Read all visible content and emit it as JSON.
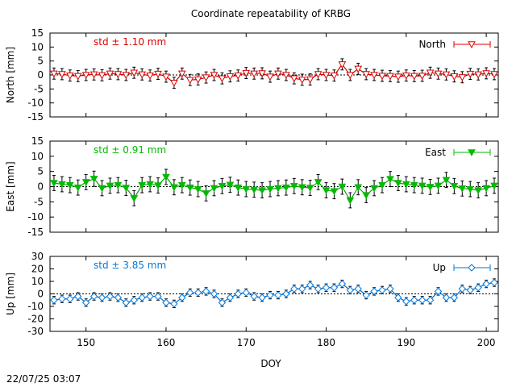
{
  "title": "Coordinate repeatability of KRBG",
  "xlabel": "DOY",
  "timestamp": "22/07/25 03:07",
  "chart_data": [
    {
      "type": "line",
      "ylabel": "North [mm]",
      "ylim": [
        -15,
        15
      ],
      "yticks": [
        "15",
        "10",
        "5",
        "0",
        "-5",
        "-10",
        "-15"
      ],
      "xlim": [
        145.5,
        201.5
      ],
      "xticks": [
        "150",
        "160",
        "170",
        "180",
        "190",
        "200"
      ],
      "std_label": "std ± 1.10 mm",
      "legend": "North",
      "color": "#dd0000",
      "series": [
        {
          "name": "North",
          "x": [
            146,
            147,
            148,
            149,
            150,
            151,
            152,
            153,
            154,
            155,
            156,
            157,
            158,
            159,
            160,
            161,
            162,
            163,
            164,
            165,
            166,
            167,
            168,
            169,
            170,
            171,
            172,
            173,
            174,
            175,
            176,
            177,
            178,
            179,
            180,
            181,
            182,
            183,
            184,
            185,
            186,
            187,
            188,
            189,
            190,
            191,
            192,
            193,
            194,
            195,
            196,
            197,
            198,
            199,
            200,
            201
          ],
          "y": [
            0.5,
            0.3,
            -0.2,
            -0.4,
            0,
            0.2,
            -0.1,
            0.5,
            0.3,
            0,
            0.8,
            0.2,
            -0.2,
            0.4,
            -0.6,
            -2.8,
            0.5,
            -1.8,
            -1.6,
            -0.9,
            0,
            -1.2,
            -0.5,
            -0.2,
            0.7,
            0.5,
            0.6,
            -0.6,
            0.5,
            0,
            -1.2,
            -1.7,
            -1.6,
            0.3,
            0,
            -0.2,
            3.8,
            0,
            2.2,
            0.3,
            0,
            -0.3,
            -0.4,
            -0.6,
            -0.2,
            -0.4,
            -0.3,
            0.8,
            0.5,
            0.2,
            -0.5,
            -0.8,
            0.4,
            0.2,
            0.6,
            0.3
          ]
        }
      ]
    },
    {
      "type": "line",
      "ylabel": "East [mm]",
      "ylim": [
        -15,
        15
      ],
      "yticks": [
        "15",
        "10",
        "5",
        "0",
        "-5",
        "-10",
        "-15"
      ],
      "xlim": [
        145.5,
        201.5
      ],
      "xticks": [
        "150",
        "160",
        "170",
        "180",
        "190",
        "200"
      ],
      "std_label": "std ± 0.91 mm",
      "legend": "East",
      "color": "#00bb00",
      "series": [
        {
          "name": "East",
          "x": [
            146,
            147,
            148,
            149,
            150,
            151,
            152,
            153,
            154,
            155,
            156,
            157,
            158,
            159,
            160,
            161,
            162,
            163,
            164,
            165,
            166,
            167,
            168,
            169,
            170,
            171,
            172,
            173,
            174,
            175,
            176,
            177,
            178,
            179,
            180,
            181,
            182,
            183,
            184,
            185,
            186,
            187,
            188,
            189,
            190,
            191,
            192,
            193,
            194,
            195,
            196,
            197,
            198,
            199,
            200,
            201
          ],
          "y": [
            1.2,
            0.8,
            0.5,
            -0.3,
            1.5,
            2.6,
            -0.5,
            0.3,
            0.5,
            -0.4,
            -3.8,
            0.5,
            0.8,
            0.4,
            3.2,
            -0.2,
            0.5,
            -0.3,
            -0.8,
            -2.2,
            -0.5,
            0.2,
            0.6,
            -0.3,
            -0.8,
            -1,
            -1.2,
            -0.8,
            -0.5,
            -0.3,
            0.2,
            -0.2,
            -0.4,
            1.5,
            -1.2,
            -1.5,
            0,
            -4.5,
            -0.2,
            -2.8,
            -0.5,
            0.5,
            2.5,
            1.2,
            0.8,
            0.5,
            0.3,
            -0.1,
            0.3,
            2.2,
            0.2,
            -0.6,
            -0.8,
            -1.2,
            -0.5,
            0.3
          ]
        }
      ]
    },
    {
      "type": "line",
      "ylabel": "Up [mm]",
      "ylim": [
        -30,
        30
      ],
      "yticks": [
        "30",
        "20",
        "10",
        "0",
        "-10",
        "-20",
        "-30"
      ],
      "xlim": [
        145.5,
        201.5
      ],
      "xticks": [
        "150",
        "160",
        "170",
        "180",
        "190",
        "200"
      ],
      "std_label": "std ± 3.85 mm",
      "legend": "Up",
      "color": "#0077dd",
      "series": [
        {
          "name": "Up",
          "x": [
            146,
            147,
            148,
            149,
            150,
            151,
            152,
            153,
            154,
            155,
            156,
            157,
            158,
            159,
            160,
            161,
            162,
            163,
            164,
            165,
            166,
            167,
            168,
            169,
            170,
            171,
            172,
            173,
            174,
            175,
            176,
            177,
            178,
            179,
            180,
            181,
            182,
            183,
            184,
            185,
            186,
            187,
            188,
            189,
            190,
            191,
            192,
            193,
            194,
            195,
            196,
            197,
            198,
            199,
            200,
            201
          ],
          "y": [
            -5,
            -4,
            -4,
            -2,
            -7,
            -2,
            -3,
            -2,
            -3,
            -7,
            -5,
            -3,
            -2,
            -2,
            -7,
            -8,
            -3,
            1,
            1,
            2,
            0,
            -7,
            -3,
            0,
            1,
            -2,
            -3,
            -1,
            -1,
            0,
            4,
            4,
            7,
            4,
            5,
            5,
            8,
            3,
            4,
            -1,
            2,
            3,
            4,
            -3,
            -6,
            -5,
            -5,
            -5,
            2,
            -3,
            -3,
            4,
            3,
            5,
            8,
            9
          ]
        }
      ]
    }
  ]
}
